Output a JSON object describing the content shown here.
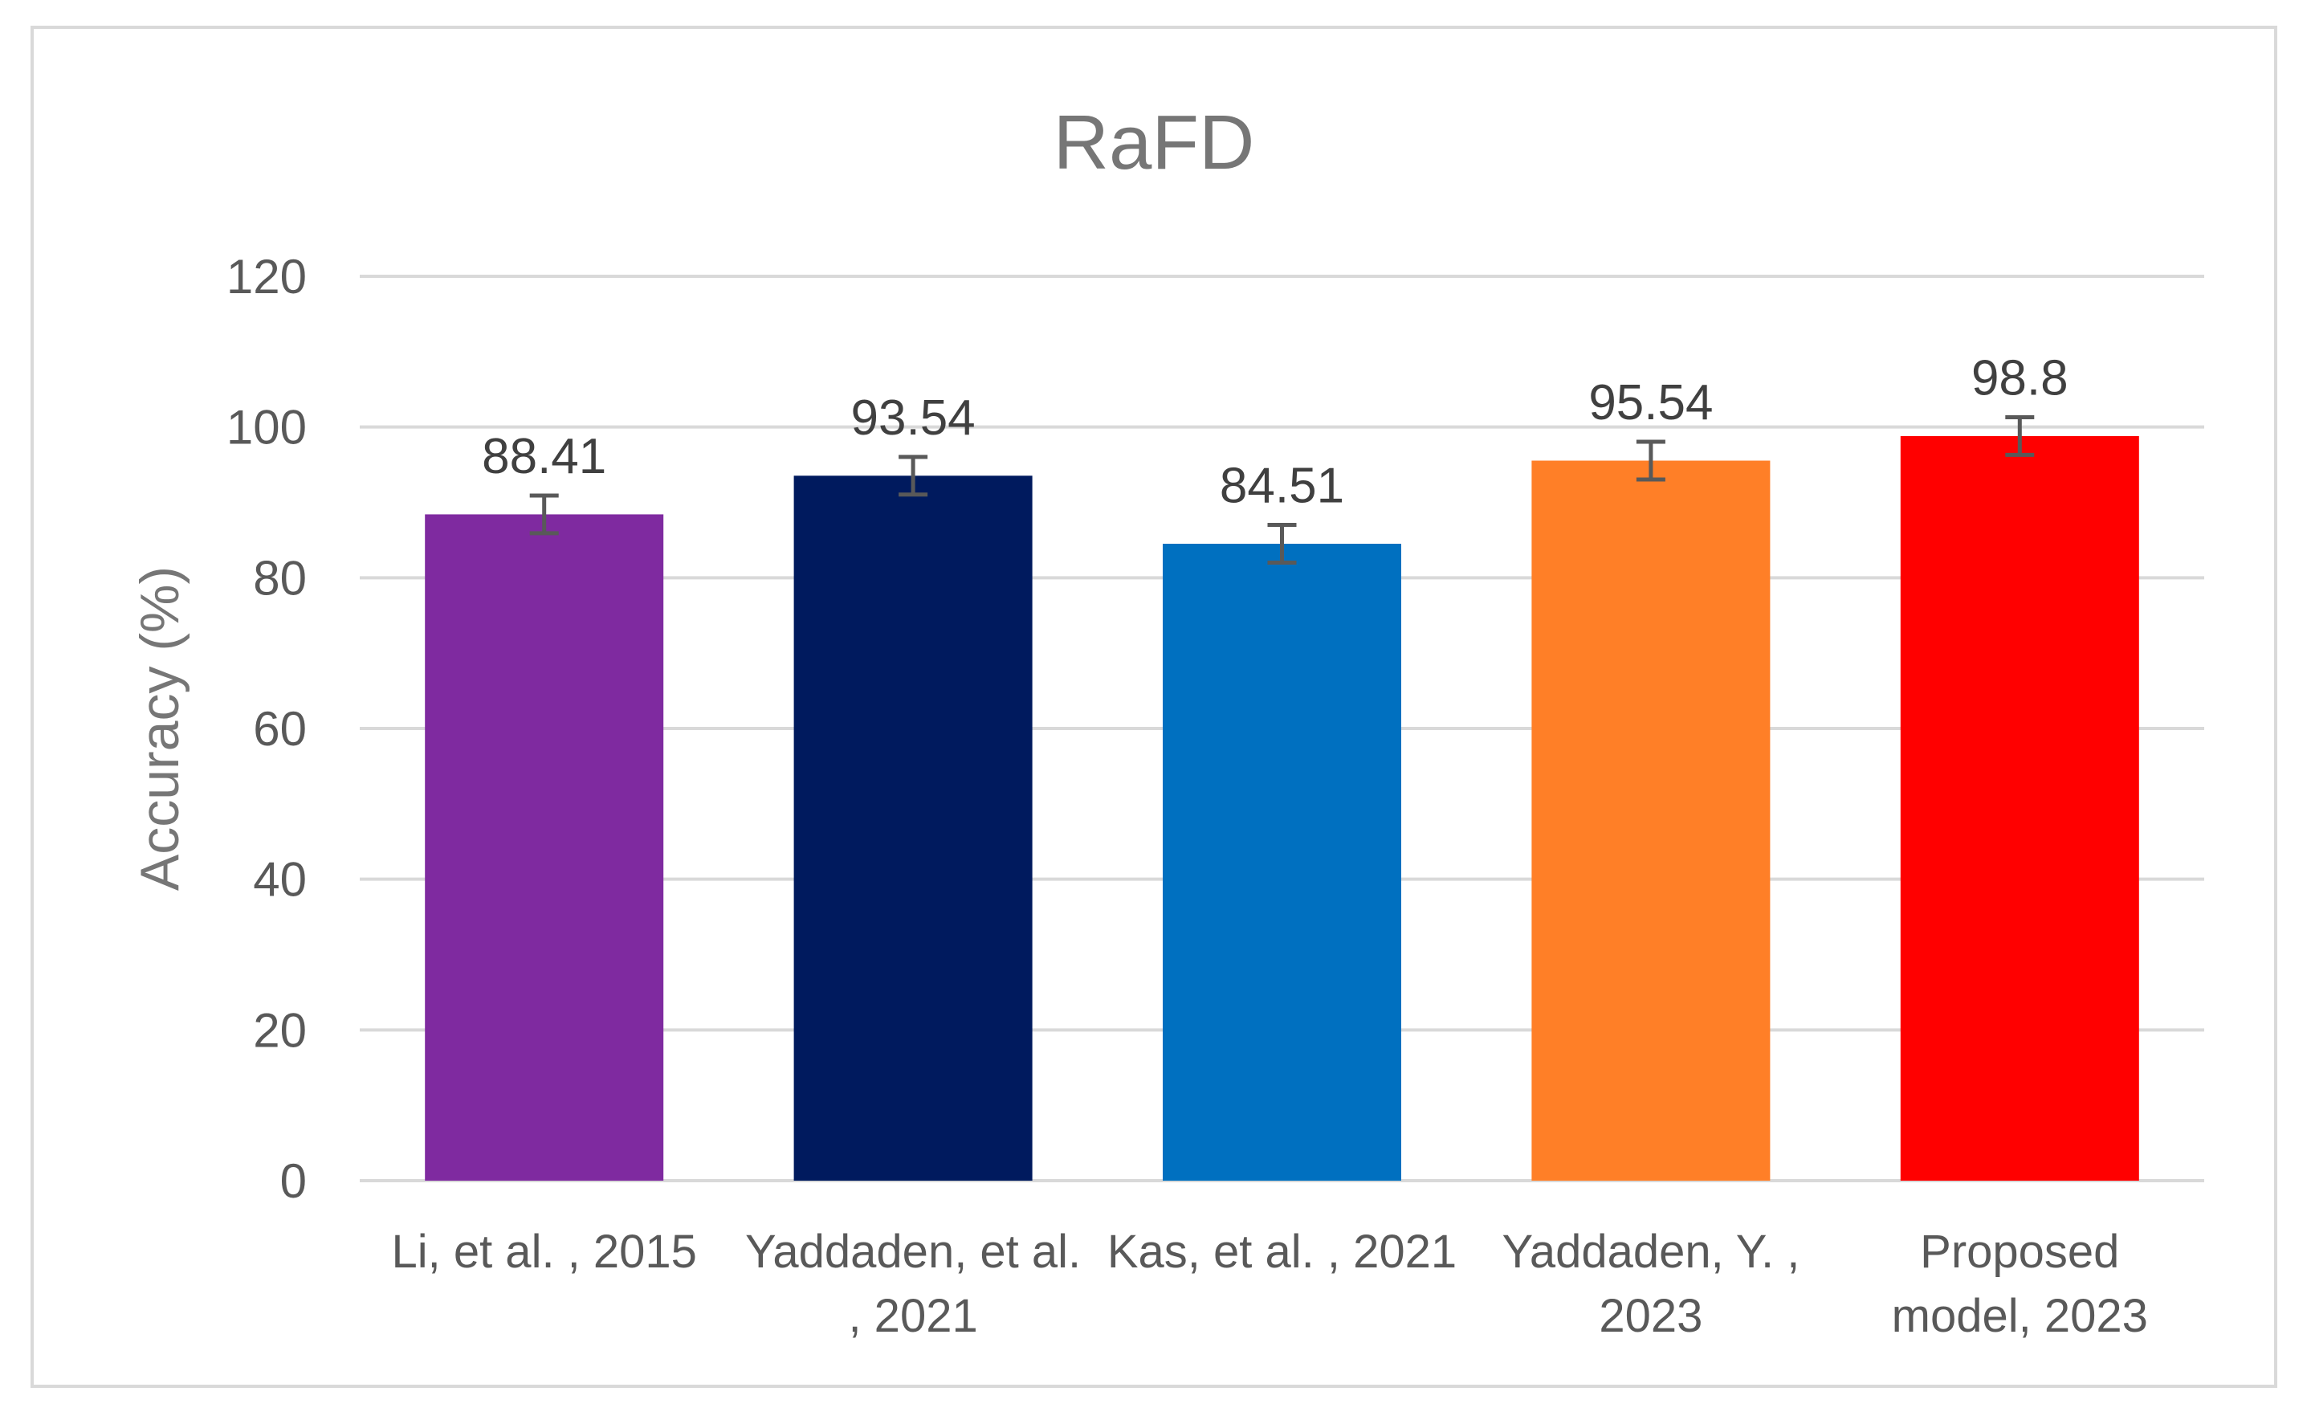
{
  "chart_data": {
    "type": "bar",
    "title": "RaFD",
    "xlabel": "",
    "ylabel": "Accuracy (%)",
    "ylim": [
      0,
      120
    ],
    "yticks": [
      0,
      20,
      40,
      60,
      80,
      100,
      120
    ],
    "grid": true,
    "legend": "none",
    "categories": [
      [
        "Li, et al. , 2015"
      ],
      [
        "Yaddaden, et al.",
        ", 2021"
      ],
      [
        "Kas, et al. , 2021"
      ],
      [
        "Yaddaden, Y. ,",
        "2023"
      ],
      [
        "Proposed",
        "model, 2023"
      ]
    ],
    "values": [
      88.41,
      93.54,
      84.51,
      95.54,
      98.8
    ],
    "data_labels": [
      "88.41",
      "93.54",
      "84.51",
      "95.54",
      "98.8"
    ],
    "error": [
      2.5,
      2.5,
      2.5,
      2.5,
      2.5
    ],
    "colors": [
      "#7f2aa0",
      "#001a5e",
      "#0070c0",
      "#ff7f27",
      "#ff0000"
    ],
    "gridline_color": "#d9d9d9",
    "error_color": "#595959"
  }
}
